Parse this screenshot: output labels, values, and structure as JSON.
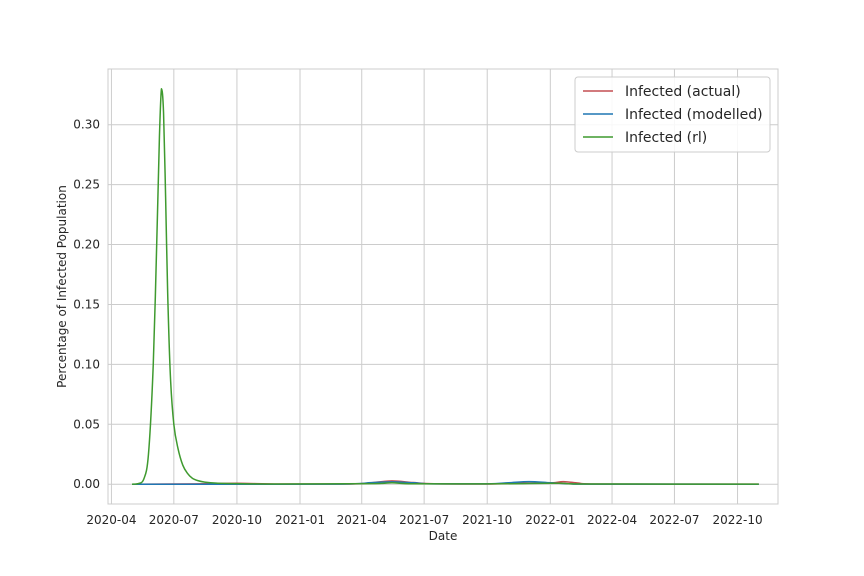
{
  "chart_data": {
    "type": "line",
    "xlabel": "Date",
    "ylabel": "Percentage of Infected Population",
    "xlim": [
      "2020-03-27",
      "2022-11-29"
    ],
    "ylim": [
      -0.0165,
      0.3465
    ],
    "x_ticks": [
      "2020-04",
      "2020-07",
      "2020-10",
      "2021-01",
      "2021-04",
      "2021-07",
      "2021-10",
      "2022-01",
      "2022-04",
      "2022-07",
      "2022-10"
    ],
    "y_ticks": [
      0.0,
      0.05,
      0.1,
      0.15,
      0.2,
      0.25,
      0.3
    ],
    "y_tick_labels": [
      "0.00",
      "0.05",
      "0.10",
      "0.15",
      "0.20",
      "0.25",
      "0.30"
    ],
    "grid": true,
    "legend_position": "upper-right",
    "colors": {
      "actual": "#c44e52",
      "modelled": "#1f77b4",
      "rl": "#3f9a2f",
      "grid": "#cccccc",
      "spine": "#cccccc"
    },
    "series": [
      {
        "name": "Infected (actual)",
        "color": "#c44e52",
        "x": [
          "2020-05-01",
          "2020-08-01",
          "2020-10-01",
          "2020-12-01",
          "2021-03-15",
          "2021-04-15",
          "2021-05-15",
          "2021-06-15",
          "2021-07-15",
          "2021-10-01",
          "2021-11-15",
          "2021-12-15",
          "2022-01-05",
          "2022-01-20",
          "2022-02-10",
          "2022-03-01",
          "2022-06-01",
          "2022-11-01"
        ],
        "y": [
          0.0,
          0.0003,
          0.0008,
          0.0002,
          0.0002,
          0.0012,
          0.0028,
          0.0014,
          0.0004,
          0.0002,
          0.0009,
          0.0008,
          0.0012,
          0.0022,
          0.001,
          0.0002,
          0.0001,
          0.0001
        ]
      },
      {
        "name": "Infected (modelled)",
        "color": "#1f77b4",
        "x": [
          "2020-05-01",
          "2020-09-01",
          "2021-03-01",
          "2021-04-15",
          "2021-05-15",
          "2021-06-15",
          "2021-07-15",
          "2021-10-01",
          "2021-11-01",
          "2021-12-01",
          "2022-01-01",
          "2022-02-01",
          "2022-03-01",
          "2022-11-01"
        ],
        "y": [
          0.0,
          0.0,
          0.0001,
          0.0013,
          0.002,
          0.0012,
          0.0003,
          0.0003,
          0.0012,
          0.0022,
          0.0012,
          0.0003,
          0.0001,
          0.0
        ]
      },
      {
        "name": "Infected (rl)",
        "color": "#3f9a2f",
        "x": [
          "2020-05-01",
          "2020-05-10",
          "2020-05-18",
          "2020-05-25",
          "2020-06-01",
          "2020-06-06",
          "2020-06-10",
          "2020-06-13",
          "2020-06-16",
          "2020-06-19",
          "2020-06-22",
          "2020-06-26",
          "2020-07-01",
          "2020-07-07",
          "2020-07-14",
          "2020-07-21",
          "2020-07-28",
          "2020-08-05",
          "2020-08-15",
          "2020-09-01",
          "2020-10-01",
          "2020-12-01",
          "2021-04-15",
          "2021-05-15",
          "2021-06-15",
          "2021-10-01",
          "2021-12-01",
          "2022-01-15",
          "2022-03-01",
          "2022-11-01"
        ],
        "y": [
          0.0,
          0.0005,
          0.004,
          0.025,
          0.1,
          0.2,
          0.29,
          0.33,
          0.31,
          0.24,
          0.16,
          0.09,
          0.05,
          0.03,
          0.016,
          0.009,
          0.005,
          0.003,
          0.0018,
          0.0009,
          0.0005,
          0.0002,
          0.0005,
          0.0012,
          0.0004,
          0.0003,
          0.0006,
          0.0008,
          0.0002,
          0.0001
        ]
      }
    ]
  }
}
